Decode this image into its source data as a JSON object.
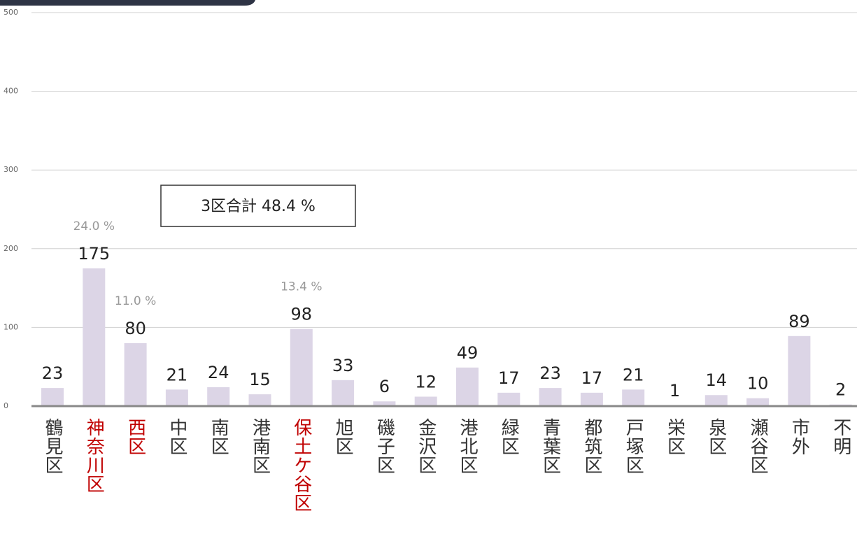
{
  "chart_data": {
    "type": "bar",
    "categories": [
      "鶴見区",
      "神奈川区",
      "西区",
      "中区",
      "南区",
      "港南区",
      "保土ケ谷区",
      "旭区",
      "磯子区",
      "金沢区",
      "港北区",
      "緑区",
      "青葉区",
      "都筑区",
      "戸塚区",
      "栄区",
      "泉区",
      "瀬谷区",
      "市外",
      "不明"
    ],
    "values": [
      23,
      175,
      80,
      21,
      24,
      15,
      98,
      33,
      6,
      12,
      49,
      17,
      23,
      17,
      21,
      1,
      14,
      10,
      89,
      2
    ],
    "percent_labels": [
      null,
      "24.0 %",
      "11.0 %",
      null,
      null,
      null,
      "13.4 %",
      null,
      null,
      null,
      null,
      null,
      null,
      null,
      null,
      null,
      null,
      null,
      null,
      null
    ],
    "category_colors": [
      "#333333",
      "#c00000",
      "#c00000",
      "#333333",
      "#333333",
      "#333333",
      "#c00000",
      "#333333",
      "#333333",
      "#333333",
      "#333333",
      "#333333",
      "#333333",
      "#333333",
      "#333333",
      "#333333",
      "#333333",
      "#333333",
      "#333333",
      "#333333"
    ],
    "color": "#dcd5e6",
    "annotation": "3区合計 48.4 %",
    "ylim": [
      0,
      500
    ],
    "yticks": [
      0,
      100,
      200,
      300,
      400,
      500
    ],
    "grid": true
  }
}
